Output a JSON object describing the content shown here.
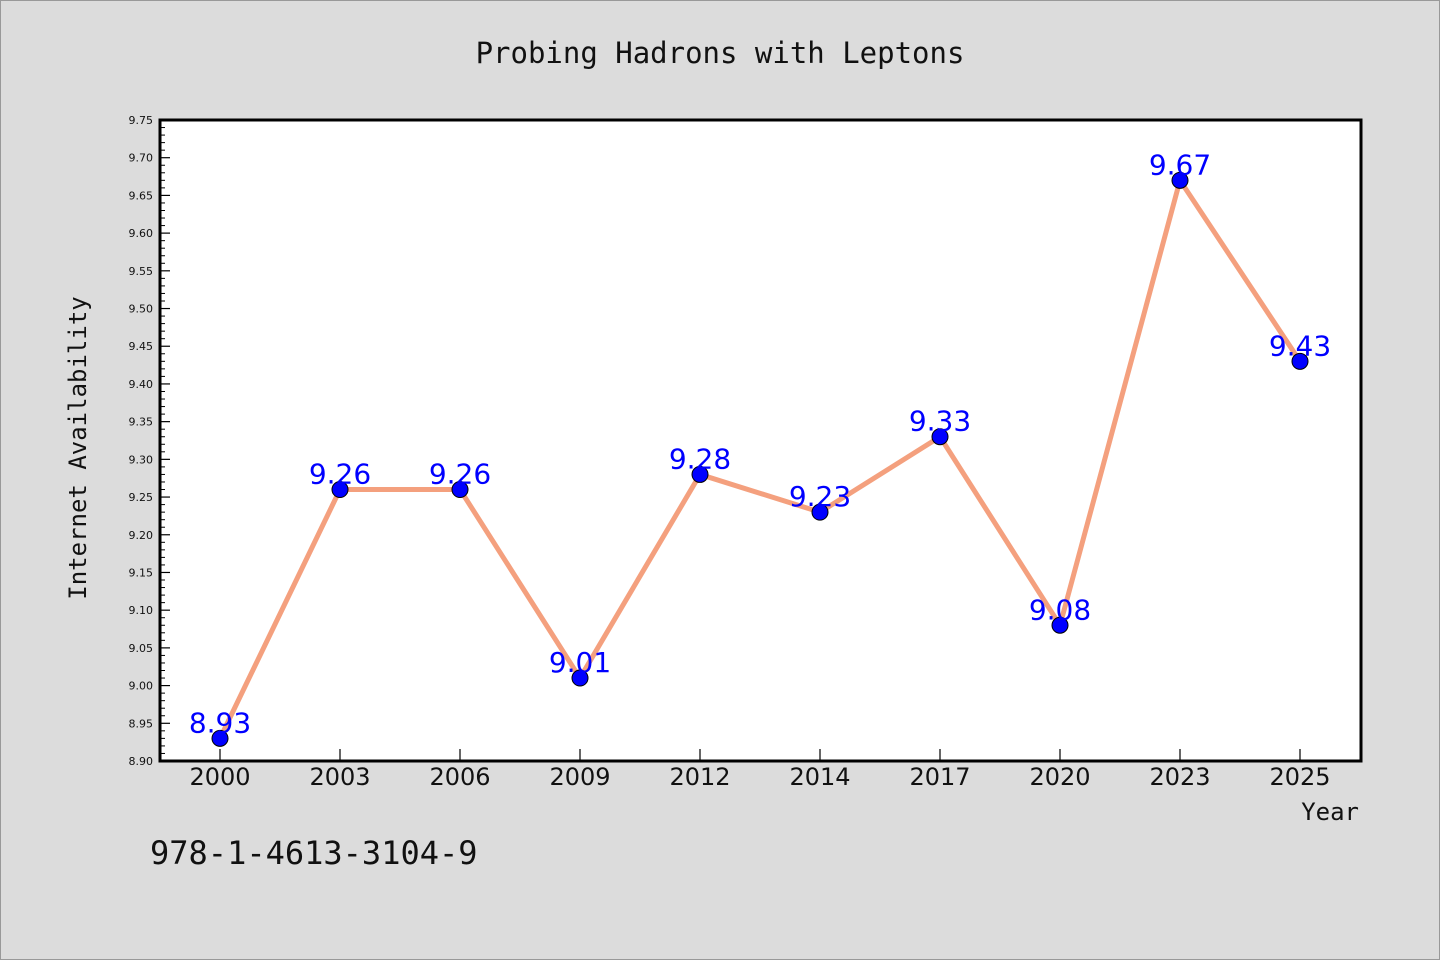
{
  "chart_data": {
    "type": "line",
    "title": "Probing Hadrons with Leptons",
    "xlabel": "Year",
    "ylabel": "Internet Availability",
    "categories": [
      "2000",
      "2003",
      "2006",
      "2009",
      "2012",
      "2014",
      "2017",
      "2020",
      "2023",
      "2025"
    ],
    "values": [
      8.93,
      9.26,
      9.26,
      9.01,
      9.28,
      9.23,
      9.33,
      9.08,
      9.67,
      9.43
    ],
    "data_labels": [
      "8.93",
      "9.26",
      "9.26",
      "9.01",
      "9.28",
      "9.23",
      "9.33",
      "9.08",
      "9.67",
      "9.43"
    ],
    "ylim": [
      8.9,
      9.75
    ],
    "yticks": [
      "8.90",
      "8.95",
      "9.00",
      "9.05",
      "9.10",
      "9.15",
      "9.20",
      "9.25",
      "9.30",
      "9.35",
      "9.40",
      "9.45",
      "9.50",
      "9.55",
      "9.60",
      "9.65",
      "9.70",
      "9.75"
    ],
    "grid": false,
    "line_color": "#f4a07e",
    "marker_color": "#0000ff",
    "label_color": "#0000ff",
    "background_color": "#dcdcdc",
    "plot_background_color": "#ffffff"
  },
  "footer": {
    "isbn": "978-1-4613-3104-9"
  }
}
